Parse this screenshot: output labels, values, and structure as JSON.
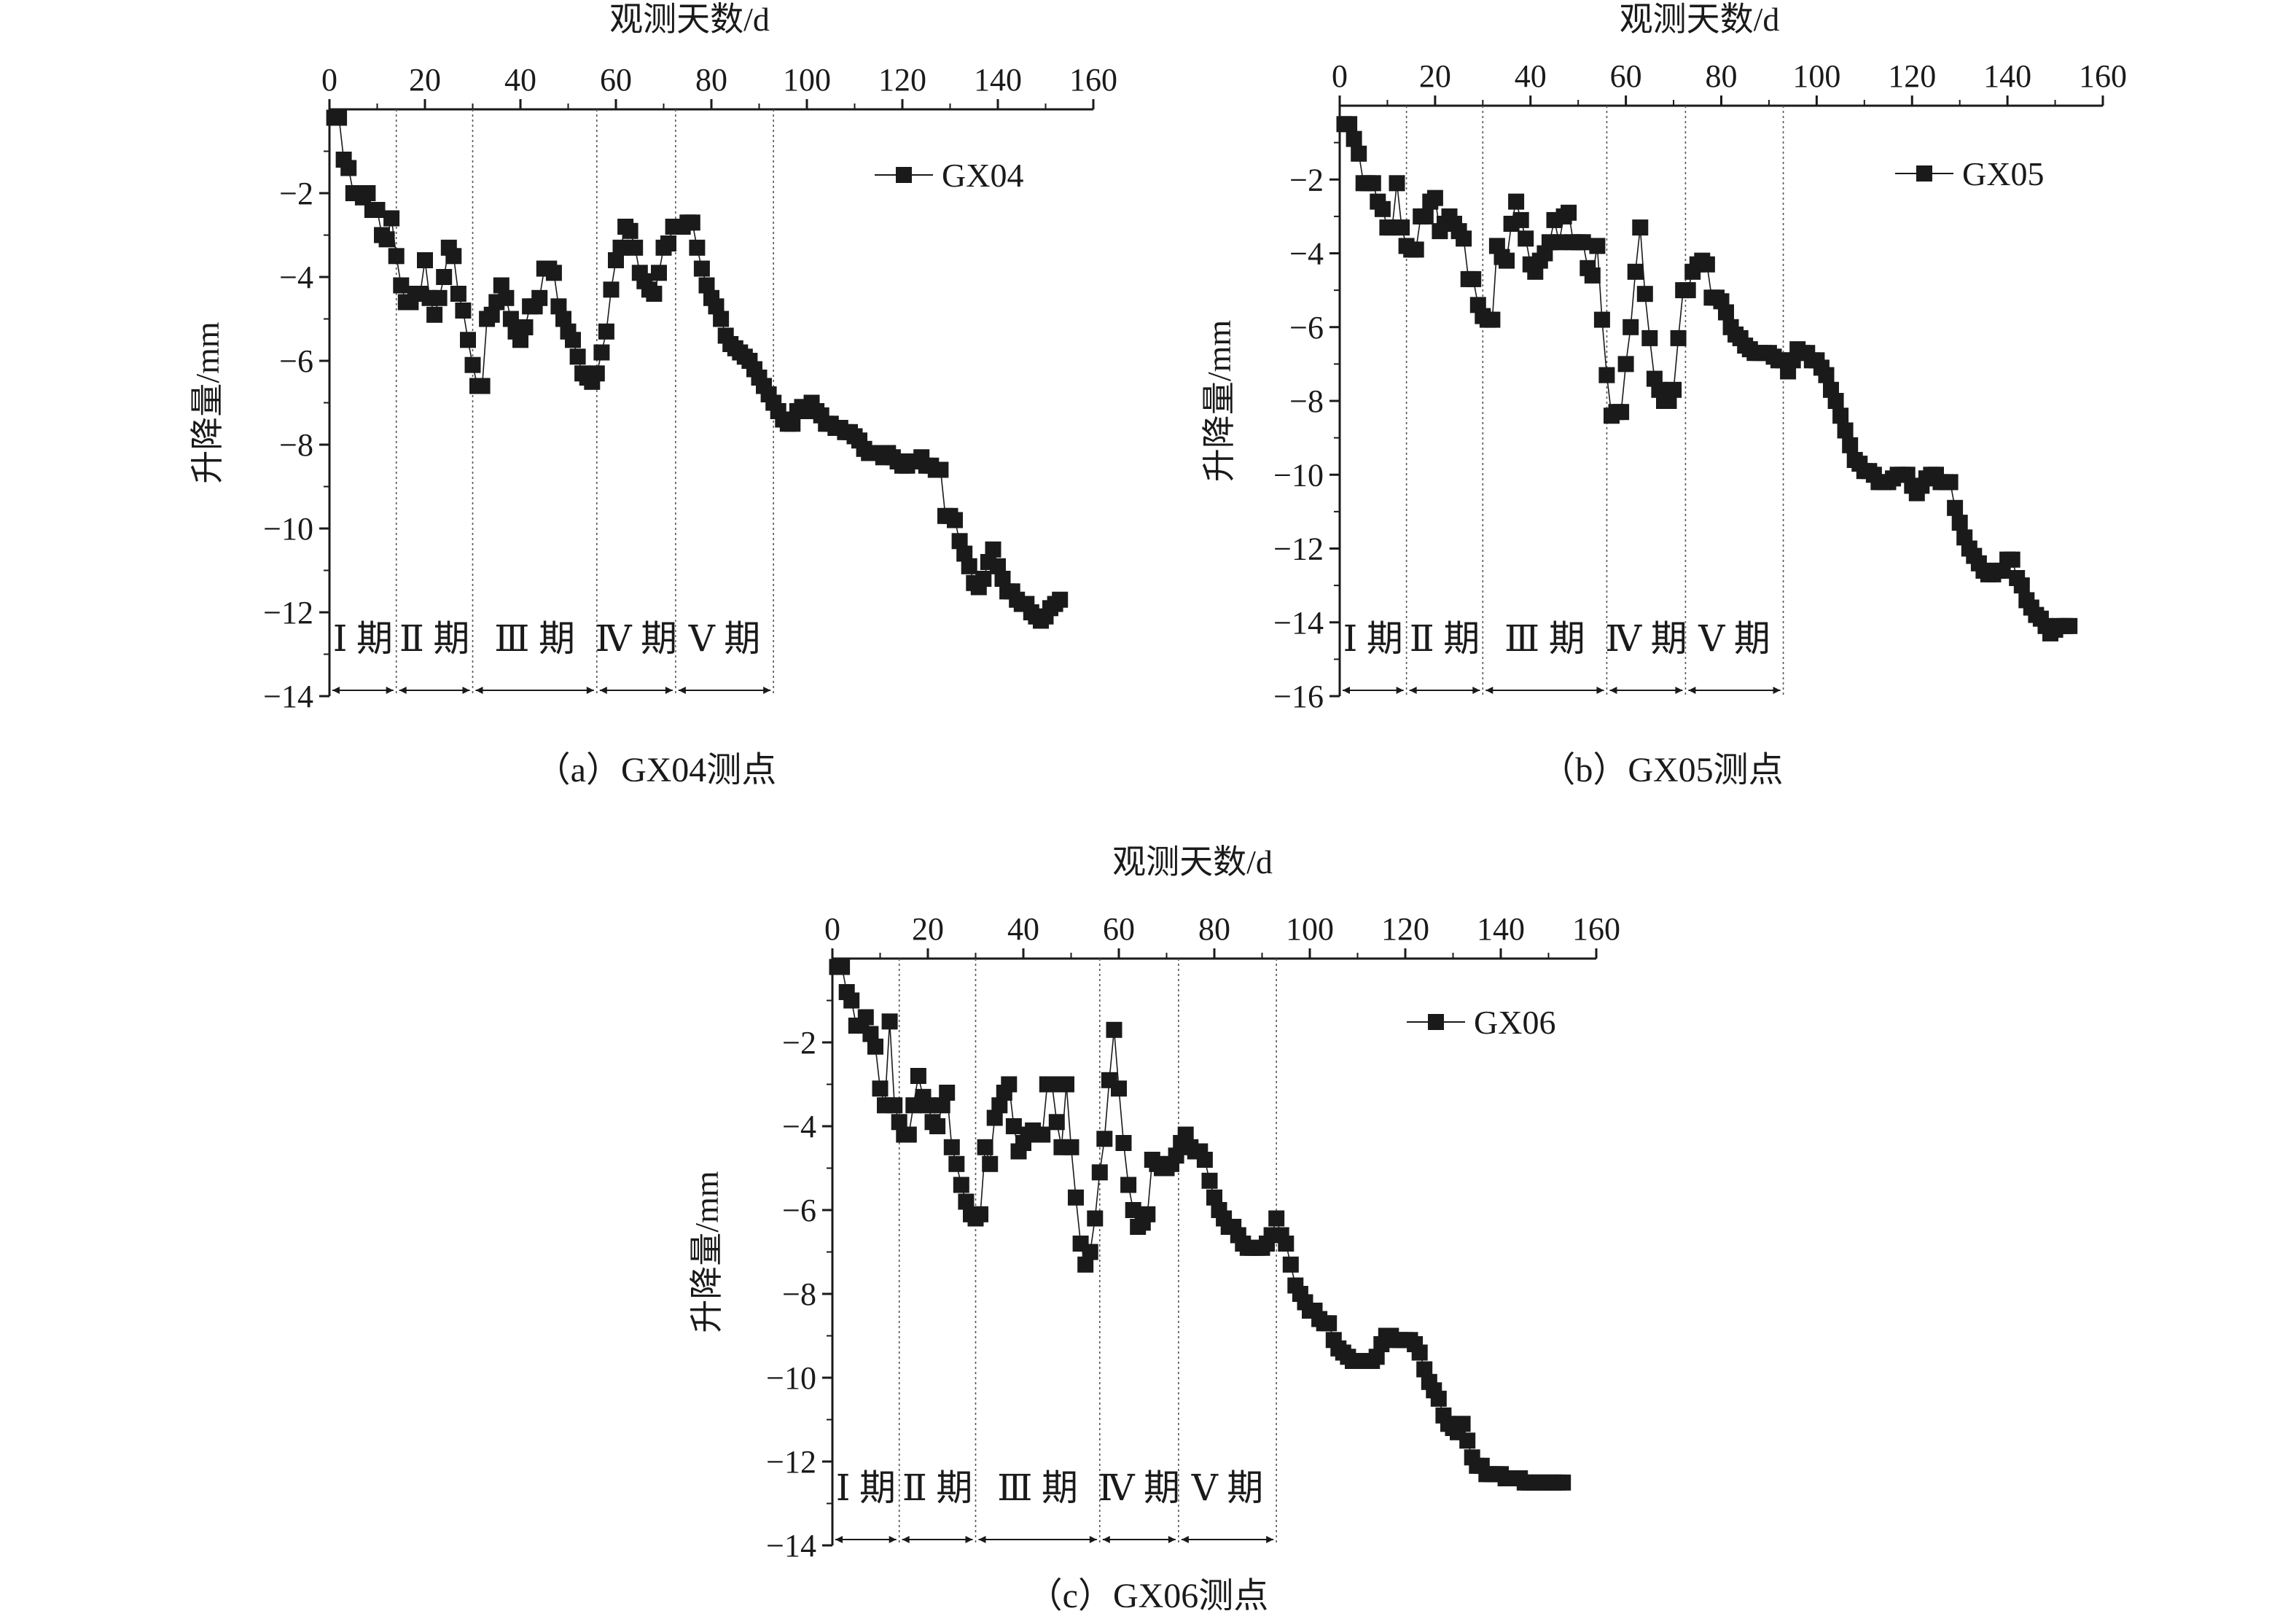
{
  "chart_data": [
    {
      "type": "line",
      "caption": "（a）GX04测点",
      "xlabel": "观测天数/d",
      "ylabel": "升降量/mm",
      "xlim": [
        0,
        160
      ],
      "ylim": [
        -14,
        0
      ],
      "xticks": [
        0,
        20,
        40,
        60,
        80,
        100,
        120,
        140,
        160
      ],
      "yticks": [
        -2,
        -4,
        -6,
        -8,
        -10,
        -12,
        -14
      ],
      "tick_labels_x": [
        "0",
        "20",
        "40",
        "60",
        "80",
        "100",
        "120",
        "140",
        "160"
      ],
      "tick_labels_y": [
        "−2",
        "−4",
        "−6",
        "−8",
        "−10",
        "−12",
        "−14"
      ],
      "legend_position": "top-right",
      "marker": "square",
      "periods": [
        "Ⅰ 期",
        "Ⅱ 期",
        "Ⅲ 期",
        "Ⅳ 期",
        "Ⅴ 期"
      ],
      "period_bounds": [
        0,
        14,
        30,
        56,
        72.5,
        93
      ],
      "series": [
        {
          "name": "GX04",
          "x": [
            1,
            2,
            3,
            4,
            5,
            6,
            7,
            8,
            9,
            10,
            11,
            12,
            13,
            14,
            15,
            16,
            17,
            18,
            19,
            20,
            21,
            22,
            23,
            24,
            25,
            26,
            27,
            28,
            29,
            30,
            31,
            32,
            33,
            34,
            35,
            36,
            37,
            38,
            39,
            40,
            41,
            42,
            43,
            44,
            45,
            46,
            47,
            48,
            49,
            50,
            51,
            52,
            53,
            54,
            55,
            56,
            57,
            58,
            59,
            60,
            61,
            62,
            63,
            64,
            65,
            66,
            67,
            68,
            69,
            70,
            71,
            72,
            73,
            74,
            75,
            76,
            77,
            78,
            79,
            80,
            81,
            82,
            83,
            84,
            85,
            86,
            87,
            88,
            89,
            90,
            91,
            92,
            93,
            94,
            95,
            96,
            97,
            98,
            99,
            100,
            101,
            102,
            103,
            104,
            105,
            106,
            107,
            108,
            109,
            110,
            111,
            112,
            113,
            114,
            115,
            116,
            117,
            118,
            119,
            120,
            121,
            122,
            123,
            124,
            125,
            126,
            127,
            128,
            129,
            130,
            131,
            132,
            133,
            134,
            135,
            136,
            137,
            138,
            139,
            140,
            141,
            142,
            143,
            144,
            145,
            146,
            147,
            148,
            149,
            150,
            151,
            152,
            153
          ],
          "y": [
            -0.2,
            -0.2,
            -1.2,
            -1.4,
            -2.0,
            -2.0,
            -2.1,
            -2.0,
            -2.4,
            -2.4,
            -3.0,
            -3.1,
            -2.6,
            -3.5,
            -4.2,
            -4.6,
            -4.6,
            -4.4,
            -4.4,
            -3.6,
            -4.5,
            -4.9,
            -4.5,
            -4.0,
            -3.3,
            -3.5,
            -4.4,
            -4.8,
            -5.5,
            -6.1,
            -6.6,
            -6.6,
            -5.0,
            -4.9,
            -4.6,
            -4.2,
            -4.5,
            -5.0,
            -5.3,
            -5.5,
            -5.2,
            -4.7,
            -4.7,
            -4.5,
            -3.8,
            -3.8,
            -3.9,
            -4.7,
            -5.0,
            -5.3,
            -5.5,
            -5.9,
            -6.3,
            -6.4,
            -6.5,
            -6.3,
            -5.8,
            -5.3,
            -4.3,
            -3.6,
            -3.3,
            -2.8,
            -2.9,
            -3.3,
            -3.9,
            -4.1,
            -4.3,
            -4.4,
            -3.9,
            -3.3,
            -3.2,
            -2.8,
            -2.8,
            -2.8,
            -2.7,
            -2.7,
            -3.3,
            -3.8,
            -4.2,
            -4.5,
            -4.7,
            -5.0,
            -5.4,
            -5.6,
            -5.7,
            -5.8,
            -5.9,
            -6.0,
            -6.2,
            -6.4,
            -6.6,
            -6.8,
            -7.0,
            -7.2,
            -7.4,
            -7.5,
            -7.5,
            -7.2,
            -7.1,
            -7.2,
            -7.0,
            -7.2,
            -7.3,
            -7.5,
            -7.5,
            -7.6,
            -7.6,
            -7.7,
            -7.7,
            -7.8,
            -7.9,
            -8.1,
            -8.2,
            -8.2,
            -8.2,
            -8.3,
            -8.2,
            -8.3,
            -8.4,
            -8.5,
            -8.5,
            -8.4,
            -8.4,
            -8.3,
            -8.5,
            -8.5,
            -8.6,
            -8.6,
            -9.7,
            -9.7,
            -9.8,
            -10.3,
            -10.6,
            -10.9,
            -11.3,
            -11.4,
            -11.2,
            -10.8,
            -10.5,
            -10.9,
            -11.2,
            -11.5,
            -11.5,
            -11.7,
            -11.8,
            -11.8,
            -12.0,
            -12.1,
            -12.2,
            -12.1,
            -11.9,
            -11.8,
            -11.7
          ]
        }
      ]
    },
    {
      "type": "line",
      "caption": "（b）GX05测点",
      "xlabel": "观测天数/d",
      "ylabel": "升降量/mm",
      "xlim": [
        0,
        160
      ],
      "ylim": [
        -16,
        0
      ],
      "xticks": [
        0,
        20,
        40,
        60,
        80,
        100,
        120,
        140,
        160
      ],
      "yticks": [
        -2,
        -4,
        -6,
        -8,
        -10,
        -12,
        -14,
        -16
      ],
      "tick_labels_x": [
        "0",
        "20",
        "40",
        "60",
        "80",
        "100",
        "120",
        "140",
        "160"
      ],
      "tick_labels_y": [
        "−2",
        "−4",
        "−6",
        "−8",
        "−10",
        "−12",
        "−14",
        "−16"
      ],
      "legend_position": "top-right",
      "marker": "square",
      "periods": [
        "Ⅰ 期",
        "Ⅱ 期",
        "Ⅲ 期",
        "Ⅳ 期",
        "Ⅴ 期"
      ],
      "period_bounds": [
        0,
        14,
        30,
        56,
        72.5,
        93
      ],
      "series": [
        {
          "name": "GX05",
          "x": [
            1,
            2,
            3,
            4,
            5,
            6,
            7,
            8,
            9,
            10,
            11,
            12,
            13,
            14,
            15,
            16,
            17,
            18,
            19,
            20,
            21,
            22,
            23,
            24,
            25,
            26,
            27,
            28,
            29,
            30,
            31,
            32,
            33,
            34,
            35,
            36,
            37,
            38,
            39,
            40,
            41,
            42,
            43,
            44,
            45,
            46,
            47,
            48,
            49,
            50,
            51,
            52,
            53,
            54,
            55,
            56,
            57,
            58,
            59,
            60,
            61,
            62,
            63,
            64,
            65,
            66,
            67,
            68,
            69,
            70,
            71,
            72,
            73,
            74,
            75,
            76,
            77,
            78,
            79,
            80,
            81,
            82,
            83,
            84,
            85,
            86,
            87,
            88,
            89,
            90,
            91,
            92,
            93,
            94,
            95,
            96,
            97,
            98,
            99,
            100,
            101,
            102,
            103,
            104,
            105,
            106,
            107,
            108,
            109,
            110,
            111,
            112,
            113,
            114,
            115,
            116,
            117,
            118,
            119,
            120,
            121,
            122,
            123,
            124,
            125,
            126,
            127,
            128,
            129,
            130,
            131,
            132,
            133,
            134,
            135,
            136,
            137,
            138,
            139,
            140,
            141,
            142,
            143,
            144,
            145,
            146,
            147,
            148,
            149,
            150,
            151,
            152,
            153
          ],
          "y": [
            -0.5,
            -0.5,
            -0.9,
            -1.3,
            -2.1,
            -2.1,
            -2.1,
            -2.6,
            -2.8,
            -3.3,
            -3.3,
            -2.1,
            -3.3,
            -3.8,
            -3.9,
            -3.9,
            -3.0,
            -3.0,
            -2.6,
            -2.5,
            -3.4,
            -3.2,
            -3.0,
            -3.2,
            -3.4,
            -3.6,
            -4.7,
            -4.7,
            -5.4,
            -5.7,
            -5.8,
            -5.8,
            -3.8,
            -4.1,
            -4.2,
            -3.2,
            -2.6,
            -3.1,
            -3.6,
            -4.3,
            -4.5,
            -4.2,
            -4.0,
            -3.7,
            -3.1,
            -3.7,
            -3.0,
            -2.9,
            -3.7,
            -3.7,
            -3.7,
            -4.4,
            -4.6,
            -3.8,
            -5.8,
            -7.3,
            -8.4,
            -8.3,
            -8.3,
            -7.0,
            -6.0,
            -4.5,
            -3.3,
            -5.1,
            -6.3,
            -7.4,
            -7.7,
            -8.0,
            -8.0,
            -7.7,
            -6.3,
            -5.0,
            -5.0,
            -4.5,
            -4.3,
            -4.2,
            -4.3,
            -5.2,
            -5.2,
            -5.3,
            -5.6,
            -6.0,
            -6.2,
            -6.3,
            -6.5,
            -6.6,
            -6.7,
            -6.7,
            -6.7,
            -6.7,
            -6.8,
            -6.9,
            -6.9,
            -7.2,
            -6.9,
            -6.6,
            -6.7,
            -6.7,
            -6.9,
            -6.9,
            -7.1,
            -7.3,
            -7.7,
            -8.0,
            -8.4,
            -8.8,
            -9.2,
            -9.6,
            -9.7,
            -9.9,
            -9.9,
            -10.0,
            -10.2,
            -10.2,
            -10.2,
            -10.1,
            -10.0,
            -10.0,
            -10.0,
            -10.3,
            -10.5,
            -10.3,
            -10.1,
            -10.0,
            -10.0,
            -10.2,
            -10.2,
            -10.2,
            -10.9,
            -11.3,
            -11.7,
            -12.0,
            -12.2,
            -12.4,
            -12.6,
            -12.7,
            -12.7,
            -12.6,
            -12.6,
            -12.3,
            -12.3,
            -12.8,
            -13.0,
            -13.4,
            -13.6,
            -13.8,
            -13.9,
            -14.1,
            -14.3,
            -14.2,
            -14.1,
            -14.1,
            -14.1
          ]
        }
      ]
    },
    {
      "type": "line",
      "caption": "（c）GX06测点",
      "xlabel": "观测天数/d",
      "ylabel": "升降量/mm",
      "xlim": [
        0,
        160
      ],
      "ylim": [
        -14,
        0
      ],
      "xticks": [
        0,
        20,
        40,
        60,
        80,
        100,
        120,
        140,
        160
      ],
      "yticks": [
        -2,
        -4,
        -6,
        -8,
        -10,
        -12,
        -14
      ],
      "tick_labels_x": [
        "0",
        "20",
        "40",
        "60",
        "80",
        "100",
        "120",
        "140",
        "160"
      ],
      "tick_labels_y": [
        "−2",
        "−4",
        "−6",
        "−8",
        "−10",
        "−12",
        "−14"
      ],
      "legend_position": "top-right",
      "marker": "square",
      "periods": [
        "Ⅰ 期",
        "Ⅱ 期",
        "Ⅲ 期",
        "Ⅳ 期",
        "Ⅴ 期"
      ],
      "period_bounds": [
        0,
        14,
        30,
        56,
        72.5,
        93
      ],
      "series": [
        {
          "name": "GX06",
          "x": [
            1,
            2,
            3,
            4,
            5,
            6,
            7,
            8,
            9,
            10,
            11,
            12,
            13,
            14,
            15,
            16,
            17,
            18,
            19,
            20,
            21,
            22,
            23,
            24,
            25,
            26,
            27,
            28,
            29,
            30,
            31,
            32,
            33,
            34,
            35,
            36,
            37,
            38,
            39,
            40,
            41,
            42,
            43,
            44,
            45,
            46,
            47,
            48,
            49,
            50,
            51,
            52,
            53,
            54,
            55,
            56,
            57,
            58,
            59,
            60,
            61,
            62,
            63,
            64,
            65,
            66,
            67,
            68,
            69,
            70,
            71,
            72,
            73,
            74,
            75,
            76,
            77,
            78,
            79,
            80,
            81,
            82,
            83,
            84,
            85,
            86,
            87,
            88,
            89,
            90,
            91,
            92,
            93,
            94,
            95,
            96,
            97,
            98,
            99,
            100,
            101,
            102,
            103,
            104,
            105,
            106,
            107,
            108,
            109,
            110,
            111,
            112,
            113,
            114,
            115,
            116,
            117,
            118,
            119,
            120,
            121,
            122,
            123,
            124,
            125,
            126,
            127,
            128,
            129,
            130,
            131,
            132,
            133,
            134,
            135,
            136,
            137,
            138,
            139,
            140,
            141,
            142,
            143,
            144,
            145,
            146,
            147,
            148,
            149,
            150,
            151,
            152,
            153
          ],
          "y": [
            -0.2,
            -0.2,
            -0.8,
            -1.0,
            -1.6,
            -1.6,
            -1.4,
            -1.8,
            -2.1,
            -3.1,
            -3.5,
            -1.5,
            -3.5,
            -3.9,
            -4.2,
            -4.2,
            -3.5,
            -2.8,
            -3.3,
            -3.5,
            -3.9,
            -4.0,
            -3.5,
            -3.2,
            -4.5,
            -4.9,
            -5.4,
            -5.8,
            -6.1,
            -6.2,
            -6.1,
            -4.5,
            -4.9,
            -3.8,
            -3.5,
            -3.2,
            -3.0,
            -4.0,
            -4.6,
            -4.4,
            -4.2,
            -4.1,
            -4.2,
            -4.2,
            -3.0,
            -3.0,
            -3.9,
            -4.5,
            -3.0,
            -4.5,
            -5.7,
            -6.8,
            -7.3,
            -7.0,
            -6.2,
            -5.1,
            -4.3,
            -2.9,
            -1.7,
            -3.1,
            -4.4,
            -5.4,
            -6.0,
            -6.4,
            -6.3,
            -6.1,
            -4.8,
            -4.9,
            -5.0,
            -5.0,
            -4.9,
            -4.7,
            -4.4,
            -4.2,
            -4.5,
            -4.6,
            -4.6,
            -4.8,
            -5.3,
            -5.7,
            -6.0,
            -6.2,
            -6.4,
            -6.4,
            -6.6,
            -6.8,
            -6.9,
            -6.9,
            -6.9,
            -6.9,
            -6.8,
            -6.6,
            -6.2,
            -6.6,
            -6.8,
            -7.3,
            -7.8,
            -8.0,
            -8.2,
            -8.4,
            -8.4,
            -8.6,
            -8.7,
            -8.7,
            -9.1,
            -9.3,
            -9.4,
            -9.5,
            -9.6,
            -9.6,
            -9.6,
            -9.6,
            -9.6,
            -9.5,
            -9.2,
            -9.0,
            -9.0,
            -9.1,
            -9.1,
            -9.1,
            -9.1,
            -9.2,
            -9.4,
            -9.8,
            -10.1,
            -10.3,
            -10.5,
            -10.9,
            -11.1,
            -11.2,
            -11.3,
            -11.1,
            -11.5,
            -11.9,
            -12.1,
            -12.1,
            -12.3,
            -12.3,
            -12.3,
            -12.3,
            -12.4,
            -12.4,
            -12.4,
            -12.4,
            -12.5,
            -12.5,
            -12.5,
            -12.5,
            -12.5,
            -12.5,
            -12.5,
            -12.5,
            -12.5
          ]
        }
      ]
    }
  ]
}
